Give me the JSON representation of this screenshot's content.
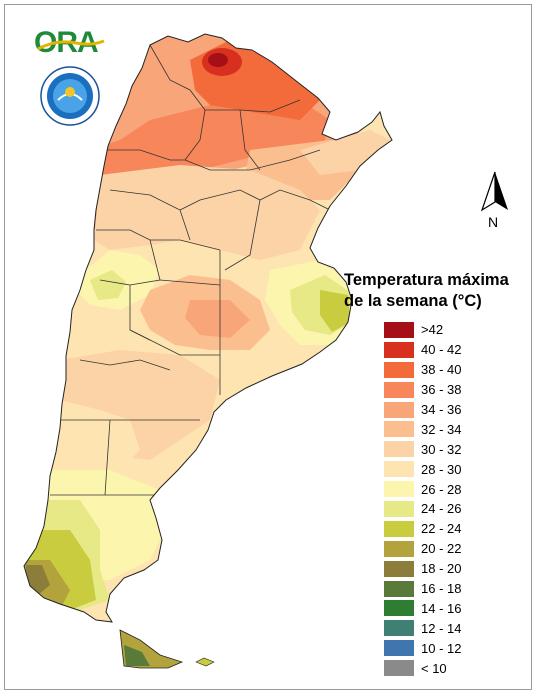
{
  "logo": {
    "name": "ORA",
    "seal_text": "SERVICIO METEOROLÓGICO NACIONAL · ARGENTINA"
  },
  "north_arrow": {
    "label": "N"
  },
  "legend": {
    "title_line1": "Temperatura máxima",
    "title_line2": "de la semana (°C)",
    "items": [
      {
        "label": ">42",
        "color": "#a50f15"
      },
      {
        "label": "40 - 42",
        "color": "#d7301f"
      },
      {
        "label": "38 - 40",
        "color": "#f36b3a"
      },
      {
        "label": "36 - 38",
        "color": "#f7875a"
      },
      {
        "label": "34 - 36",
        "color": "#f9a57a"
      },
      {
        "label": "32 - 34",
        "color": "#fbbf8f"
      },
      {
        "label": "30 - 32",
        "color": "#fcd3a6"
      },
      {
        "label": "28 - 30",
        "color": "#fde4b0"
      },
      {
        "label": "26 - 28",
        "color": "#fbf5ad"
      },
      {
        "label": "24 - 26",
        "color": "#e6e985"
      },
      {
        "label": "22 - 24",
        "color": "#c9cc3f"
      },
      {
        "label": "20 - 22",
        "color": "#b2a33c"
      },
      {
        "label": "18 - 20",
        "color": "#8c7d3a"
      },
      {
        "label": "16 - 18",
        "color": "#5a7a3a"
      },
      {
        "label": "14 - 16",
        "color": "#2e7d32"
      },
      {
        "label": "12 - 14",
        "color": "#3f7f74"
      },
      {
        "label": "10 - 12",
        "color": "#3f76ad"
      },
      {
        "label": "< 10",
        "color": "#8a8a8a"
      }
    ]
  }
}
